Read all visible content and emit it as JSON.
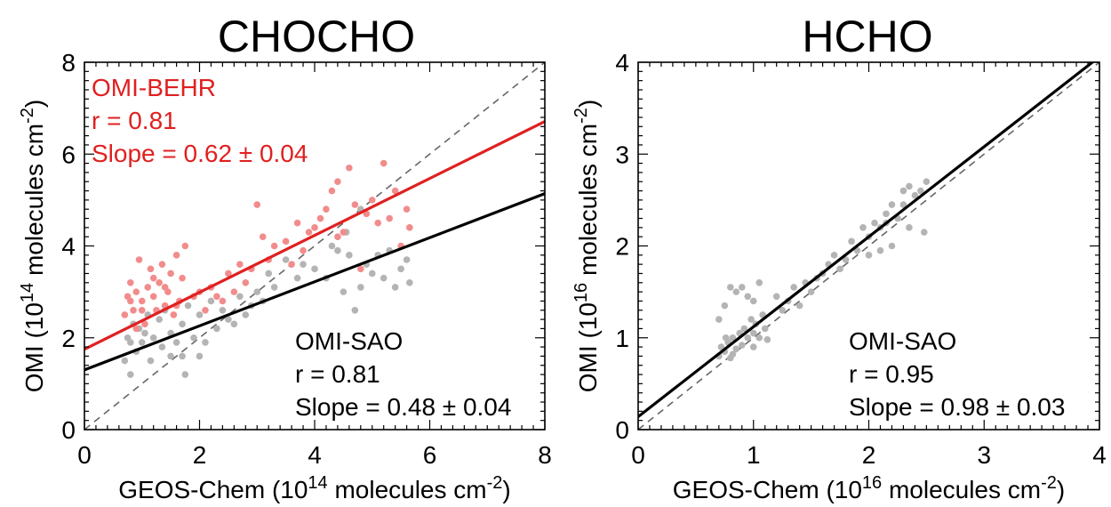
{
  "chart_data": [
    {
      "type": "scatter",
      "title": "CHOCHO",
      "xlabel": {
        "pre": "GEOS-Chem (10",
        "sup1": "14",
        "mid": " molecules cm",
        "sup2": "-2",
        "post": ")"
      },
      "ylabel": {
        "pre": "OMI (10",
        "sup1": "14",
        "mid": " molecules cm",
        "sup2": "-2",
        "post": ")"
      },
      "xlim": [
        0,
        8
      ],
      "ylim": [
        0,
        8
      ],
      "xticks": [
        "0",
        "2",
        "4",
        "6",
        "8"
      ],
      "yticks": [
        "0",
        "2",
        "4",
        "6",
        "8"
      ],
      "grid": false,
      "one_to_one_line": true,
      "series": [
        {
          "name": "OMI-BEHR",
          "color": "#f28c8c",
          "fit_color": "#e02020",
          "fit": {
            "intercept": 1.75,
            "slope": 0.62
          },
          "annotation": [
            "OMI-BEHR",
            "r = 0.81",
            "Slope = 0.62 ± 0.04"
          ],
          "points": [
            [
              0.7,
              2.5
            ],
            [
              0.75,
              2.9
            ],
            [
              0.8,
              3.2
            ],
            [
              0.85,
              2.6
            ],
            [
              0.9,
              3.0
            ],
            [
              0.95,
              3.7
            ],
            [
              1.0,
              2.8
            ],
            [
              1.05,
              2.3
            ],
            [
              1.1,
              3.1
            ],
            [
              1.15,
              3.5
            ],
            [
              1.2,
              2.9
            ],
            [
              1.25,
              2.6
            ],
            [
              1.3,
              3.2
            ],
            [
              1.35,
              3.6
            ],
            [
              1.4,
              2.7
            ],
            [
              1.45,
              3.0
            ],
            [
              1.5,
              3.4
            ],
            [
              1.55,
              2.5
            ],
            [
              1.6,
              3.8
            ],
            [
              1.65,
              2.8
            ],
            [
              1.7,
              3.3
            ],
            [
              1.75,
              4.0
            ],
            [
              0.9,
              2.2
            ],
            [
              1.0,
              2.6
            ],
            [
              1.2,
              3.3
            ],
            [
              1.4,
              3.1
            ],
            [
              1.6,
              2.7
            ],
            [
              2.0,
              3.0
            ],
            [
              2.1,
              2.6
            ],
            [
              2.2,
              3.1
            ],
            [
              2.4,
              2.8
            ],
            [
              2.5,
              3.4
            ],
            [
              2.6,
              3.0
            ],
            [
              2.7,
              3.6
            ],
            [
              2.8,
              3.2
            ],
            [
              2.9,
              3.5
            ],
            [
              3.0,
              4.9
            ],
            [
              3.1,
              4.2
            ],
            [
              3.2,
              3.7
            ],
            [
              3.3,
              4.0
            ],
            [
              3.5,
              4.1
            ],
            [
              3.7,
              4.5
            ],
            [
              3.8,
              3.9
            ],
            [
              3.9,
              4.3
            ],
            [
              4.0,
              4.4
            ],
            [
              4.1,
              4.6
            ],
            [
              4.2,
              4.8
            ],
            [
              4.3,
              5.2
            ],
            [
              4.4,
              5.4
            ],
            [
              4.5,
              4.3
            ],
            [
              4.6,
              5.7
            ],
            [
              4.7,
              4.9
            ],
            [
              4.8,
              3.5
            ],
            [
              4.9,
              4.7
            ],
            [
              5.0,
              5.0
            ],
            [
              5.1,
              4.5
            ],
            [
              5.2,
              5.8
            ],
            [
              5.3,
              4.6
            ],
            [
              5.4,
              5.2
            ],
            [
              5.5,
              4.0
            ],
            [
              5.6,
              4.8
            ],
            [
              5.65,
              4.4
            ],
            [
              4.4,
              4.2
            ],
            [
              3.6,
              3.6
            ],
            [
              2.3,
              2.9
            ],
            [
              1.9,
              2.9
            ],
            [
              0.8,
              2.8
            ]
          ]
        },
        {
          "name": "OMI-SAO",
          "color": "#b4b4b4",
          "fit_color": "#000000",
          "fit": {
            "intercept": 1.3,
            "slope": 0.48
          },
          "annotation": [
            "OMI-SAO",
            "r = 0.81",
            "Slope = 0.48 ± 0.04"
          ],
          "points": [
            [
              0.7,
              1.5
            ],
            [
              0.75,
              2.0
            ],
            [
              0.8,
              1.9
            ],
            [
              0.85,
              2.3
            ],
            [
              0.9,
              1.7
            ],
            [
              0.95,
              2.2
            ],
            [
              1.0,
              1.9
            ],
            [
              1.05,
              2.1
            ],
            [
              1.1,
              2.5
            ],
            [
              1.15,
              1.5
            ],
            [
              1.2,
              2.0
            ],
            [
              1.3,
              2.4
            ],
            [
              1.35,
              1.8
            ],
            [
              1.4,
              2.6
            ],
            [
              1.5,
              2.1
            ],
            [
              1.6,
              1.9
            ],
            [
              1.7,
              2.3
            ],
            [
              1.75,
              1.2
            ],
            [
              1.8,
              2.7
            ],
            [
              1.9,
              2.0
            ],
            [
              2.0,
              2.5
            ],
            [
              2.1,
              1.9
            ],
            [
              2.2,
              2.8
            ],
            [
              2.3,
              2.2
            ],
            [
              2.4,
              2.6
            ],
            [
              2.5,
              2.4
            ],
            [
              2.6,
              2.3
            ],
            [
              2.7,
              2.9
            ],
            [
              2.8,
              2.5
            ],
            [
              2.9,
              2.7
            ],
            [
              3.0,
              3.0
            ],
            [
              3.1,
              2.8
            ],
            [
              3.2,
              3.4
            ],
            [
              3.3,
              3.1
            ],
            [
              3.5,
              3.7
            ],
            [
              3.7,
              3.3
            ],
            [
              3.8,
              3.6
            ],
            [
              4.0,
              3.5
            ],
            [
              4.2,
              3.3
            ],
            [
              4.4,
              3.9
            ],
            [
              4.5,
              3.0
            ],
            [
              4.6,
              3.8
            ],
            [
              4.7,
              2.6
            ],
            [
              4.8,
              3.1
            ],
            [
              4.9,
              3.6
            ],
            [
              5.0,
              3.4
            ],
            [
              5.1,
              3.8
            ],
            [
              5.2,
              3.3
            ],
            [
              5.3,
              3.9
            ],
            [
              5.4,
              3.1
            ],
            [
              5.5,
              3.5
            ],
            [
              5.6,
              3.7
            ],
            [
              5.65,
              3.2
            ],
            [
              4.3,
              4.0
            ],
            [
              4.55,
              4.3
            ],
            [
              0.8,
              1.2
            ],
            [
              1.7,
              1.6
            ],
            [
              2.0,
              1.6
            ],
            [
              1.5,
              1.6
            ],
            [
              4.8,
              4.8
            ]
          ]
        }
      ]
    },
    {
      "type": "scatter",
      "title": "HCHO",
      "xlabel": {
        "pre": "GEOS-Chem (10",
        "sup1": "16",
        "mid": " molecules cm",
        "sup2": "-2",
        "post": ")"
      },
      "ylabel": {
        "pre": "OMI (10",
        "sup1": "16",
        "mid": " molecules cm",
        "sup2": "-2",
        "post": ")"
      },
      "xlim": [
        0,
        4
      ],
      "ylim": [
        0,
        4
      ],
      "xticks": [
        "0",
        "1",
        "2",
        "3",
        "4"
      ],
      "yticks": [
        "0",
        "1",
        "2",
        "3",
        "4"
      ],
      "grid": false,
      "one_to_one_line": true,
      "series": [
        {
          "name": "OMI-SAO",
          "color": "#b4b4b4",
          "fit_color": "#000000",
          "fit": {
            "intercept": 0.14,
            "slope": 0.98
          },
          "annotation": [
            "OMI-SAO",
            "r = 0.95",
            "Slope = 0.98 ± 0.03"
          ],
          "points": [
            [
              0.7,
              0.8
            ],
            [
              0.72,
              0.9
            ],
            [
              0.75,
              0.85
            ],
            [
              0.78,
              0.95
            ],
            [
              0.8,
              0.78
            ],
            [
              0.82,
              1.0
            ],
            [
              0.85,
              0.88
            ],
            [
              0.88,
              1.05
            ],
            [
              0.9,
              0.92
            ],
            [
              0.92,
              1.1
            ],
            [
              0.95,
              1.0
            ],
            [
              0.98,
              1.2
            ],
            [
              1.0,
              1.05
            ],
            [
              1.02,
              1.15
            ],
            [
              1.05,
              1.0
            ],
            [
              1.08,
              1.25
            ],
            [
              1.1,
              1.1
            ],
            [
              0.85,
              1.5
            ],
            [
              0.8,
              1.55
            ],
            [
              0.9,
              1.55
            ],
            [
              1.0,
              1.4
            ],
            [
              0.75,
              1.35
            ],
            [
              0.95,
              1.45
            ],
            [
              1.05,
              1.6
            ],
            [
              0.7,
              1.2
            ],
            [
              1.2,
              1.45
            ],
            [
              1.25,
              1.3
            ],
            [
              1.3,
              1.4
            ],
            [
              1.35,
              1.55
            ],
            [
              1.4,
              1.35
            ],
            [
              1.45,
              1.6
            ],
            [
              1.5,
              1.5
            ],
            [
              1.55,
              1.65
            ],
            [
              1.6,
              1.7
            ],
            [
              1.65,
              1.8
            ],
            [
              1.7,
              1.9
            ],
            [
              1.75,
              1.75
            ],
            [
              1.8,
              1.85
            ],
            [
              1.85,
              2.05
            ],
            [
              1.9,
              1.95
            ],
            [
              1.95,
              2.2
            ],
            [
              2.0,
              2.1
            ],
            [
              2.05,
              2.25
            ],
            [
              2.1,
              2.2
            ],
            [
              2.15,
              2.35
            ],
            [
              2.2,
              2.0
            ],
            [
              2.25,
              2.3
            ],
            [
              2.3,
              2.45
            ],
            [
              2.35,
              2.2
            ],
            [
              2.4,
              2.55
            ],
            [
              2.45,
              2.6
            ],
            [
              2.5,
              2.7
            ],
            [
              2.48,
              2.15
            ],
            [
              2.3,
              2.6
            ],
            [
              2.2,
              2.45
            ],
            [
              2.1,
              1.95
            ],
            [
              2.0,
              1.9
            ],
            [
              0.82,
              0.82
            ],
            [
              1.12,
              0.98
            ],
            [
              0.76,
              1.0
            ],
            [
              1.0,
              0.9
            ],
            [
              2.35,
              2.65
            ],
            [
              2.15,
              2.25
            ]
          ]
        }
      ]
    }
  ]
}
